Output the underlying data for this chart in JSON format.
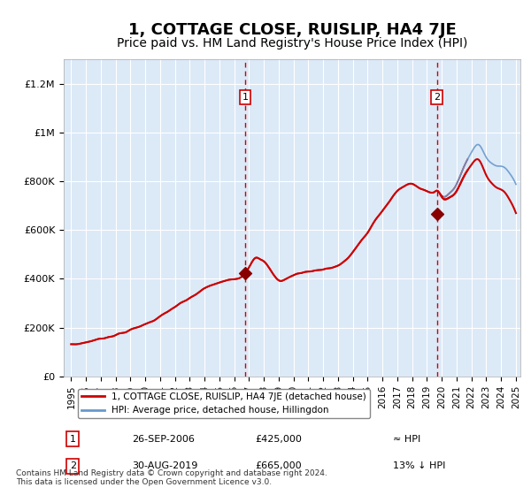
{
  "title": "1, COTTAGE CLOSE, RUISLIP, HA4 7JE",
  "subtitle": "Price paid vs. HM Land Registry's House Price Index (HPI)",
  "title_fontsize": 13,
  "subtitle_fontsize": 10,
  "background_color": "#ffffff",
  "plot_bg_color": "#dce9f7",
  "grid_color": "#ffffff",
  "ylim": [
    0,
    1300000
  ],
  "yticks": [
    0,
    200000,
    400000,
    600000,
    800000,
    1000000,
    1200000
  ],
  "ytick_labels": [
    "£0",
    "£200K",
    "£400K",
    "£600K",
    "£800K",
    "£1M",
    "£1.2M"
  ],
  "xticks": [
    1995,
    1996,
    1997,
    1998,
    1999,
    2000,
    2001,
    2002,
    2003,
    2004,
    2005,
    2006,
    2007,
    2008,
    2009,
    2010,
    2011,
    2012,
    2013,
    2014,
    2015,
    2016,
    2017,
    2018,
    2019,
    2020,
    2021,
    2022,
    2023,
    2024,
    2025
  ],
  "line_color_hpi": "#6699cc",
  "line_color_price": "#cc0000",
  "sale1_date": 2006.73,
  "sale1_price": 425000,
  "sale1_label": "1",
  "sale2_date": 2019.66,
  "sale2_price": 665000,
  "sale2_label": "2",
  "legend_entries": [
    "1, COTTAGE CLOSE, RUISLIP, HA4 7JE (detached house)",
    "HPI: Average price, detached house, Hillingdon"
  ],
  "footnote1": "Contains HM Land Registry data © Crown copyright and database right 2024.",
  "footnote2": "This data is licensed under the Open Government Licence v3.0.",
  "table_rows": [
    {
      "num": "1",
      "date": "26-SEP-2006",
      "price": "£425,000",
      "hpi": "≈ HPI"
    },
    {
      "num": "2",
      "date": "30-AUG-2019",
      "price": "£665,000",
      "hpi": "13% ↓ HPI"
    }
  ]
}
